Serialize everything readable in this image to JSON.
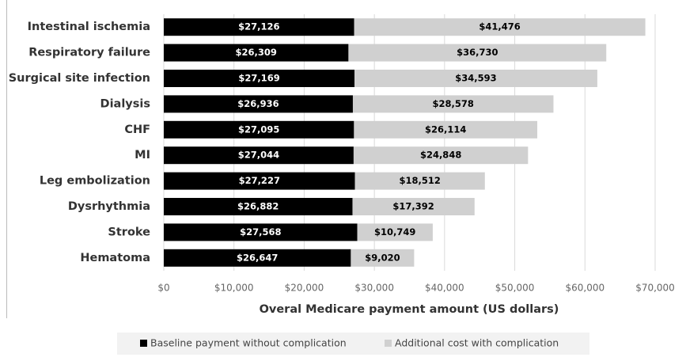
{
  "chart_data": {
    "type": "stacked-bar-horizontal",
    "x_label": "Overal Medicare payment amount (US dollars)",
    "categories": [
      "Intestinal ischemia",
      "Respiratory failure",
      "Surgical site infection",
      "Dialysis",
      "CHF",
      "MI",
      "Leg embolization",
      "Dysrhythmia",
      "Stroke",
      "Hematoma"
    ],
    "series": [
      {
        "name": "Baseline payment without complication",
        "color": "#000000",
        "values": [
          27126,
          26309,
          27169,
          26936,
          27095,
          27044,
          27227,
          26882,
          27568,
          26647
        ],
        "value_labels": [
          "$27,126",
          "$26,309",
          "$27,169",
          "$26,936",
          "$27,095",
          "$27,044",
          "$27,227",
          "$26,882",
          "$27,568",
          "$26,647"
        ]
      },
      {
        "name": "Additional cost with complication",
        "color": "#d0d0d0",
        "values": [
          41476,
          36730,
          34593,
          28578,
          26114,
          24848,
          18512,
          17392,
          10749,
          9020
        ],
        "value_labels": [
          "$41,476",
          "$36,730",
          "$34,593",
          "$28,578",
          "$26,114",
          "$24,848",
          "$18,512",
          "$17,392",
          "$10,749",
          "$9,020"
        ]
      }
    ],
    "xlim": [
      0,
      70000
    ],
    "xticks": [
      {
        "value": 0,
        "label": "$0"
      },
      {
        "value": 10000,
        "label": "$10,000"
      },
      {
        "value": 20000,
        "label": "$20,000"
      },
      {
        "value": 30000,
        "label": "$30,000"
      },
      {
        "value": 40000,
        "label": "$40,000"
      },
      {
        "value": 50000,
        "label": "$50,000"
      },
      {
        "value": 60000,
        "label": "$60,000"
      },
      {
        "value": 70000,
        "label": "$70,000"
      }
    ],
    "grid": true,
    "legend": "bottom"
  }
}
